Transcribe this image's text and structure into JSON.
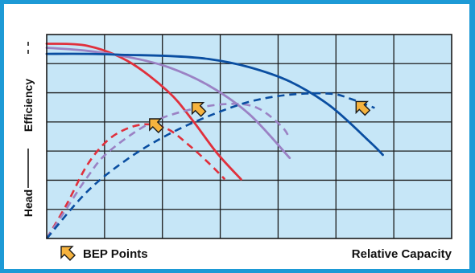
{
  "chart_data": {
    "type": "line",
    "xlabel": "Relative Capacity",
    "ylabel_head": "Head",
    "ylabel_efficiency": "Efficiency",
    "legend_label": "BEP Points",
    "grid": true,
    "plot_background": "#c6e6f7",
    "frame_color": "#1d9ad6",
    "marker_color": "#f6b33e",
    "xlim": [
      0,
      10
    ],
    "ylim": [
      0,
      10
    ],
    "series": [
      {
        "color": "#e0303c",
        "head": [
          [
            0,
            9.55
          ],
          [
            1,
            9.45
          ],
          [
            2,
            8.7
          ],
          [
            3,
            7.2
          ],
          [
            3.6,
            5.8
          ],
          [
            4.2,
            4.2
          ],
          [
            4.8,
            2.9
          ]
        ],
        "efficiency": [
          [
            0,
            0
          ],
          [
            0.5,
            1.7
          ],
          [
            1,
            3.6
          ],
          [
            1.5,
            4.8
          ],
          [
            2,
            5.4
          ],
          [
            2.5,
            5.6
          ],
          [
            3,
            5.35
          ],
          [
            3.5,
            4.6
          ],
          [
            4.0,
            3.7
          ],
          [
            4.4,
            2.9
          ]
        ],
        "bep": [
          2.7,
          5.55
        ]
      },
      {
        "color": "#9b82c4",
        "head": [
          [
            0,
            9.35
          ],
          [
            1,
            9.2
          ],
          [
            2,
            8.9
          ],
          [
            3,
            8.4
          ],
          [
            4,
            7.5
          ],
          [
            5,
            6.1
          ],
          [
            6,
            3.95
          ]
        ],
        "efficiency": [
          [
            0,
            0
          ],
          [
            0.5,
            1.5
          ],
          [
            1,
            3.0
          ],
          [
            1.5,
            4.2
          ],
          [
            2.5,
            5.6
          ],
          [
            3.5,
            6.3
          ],
          [
            4.5,
            6.6
          ],
          [
            5.2,
            6.4
          ],
          [
            5.8,
            5.5
          ],
          [
            6.0,
            4.9
          ]
        ],
        "bep": [
          3.75,
          6.35
        ]
      },
      {
        "color": "#0a4ea1",
        "head": [
          [
            0,
            9.05
          ],
          [
            1,
            9.05
          ],
          [
            2,
            9.0
          ],
          [
            3,
            8.95
          ],
          [
            4,
            8.8
          ],
          [
            5,
            8.4
          ],
          [
            6,
            7.7
          ],
          [
            7,
            6.5
          ],
          [
            8,
            4.7
          ],
          [
            8.3,
            4.1
          ]
        ],
        "efficiency": [
          [
            0,
            0
          ],
          [
            1,
            2.3
          ],
          [
            2,
            3.9
          ],
          [
            3,
            5.1
          ],
          [
            4,
            6.0
          ],
          [
            5,
            6.7
          ],
          [
            6,
            7.05
          ],
          [
            7,
            7.1
          ],
          [
            7.5,
            6.85
          ],
          [
            8.1,
            6.4
          ]
        ],
        "bep": [
          7.8,
          6.4
        ]
      }
    ]
  }
}
